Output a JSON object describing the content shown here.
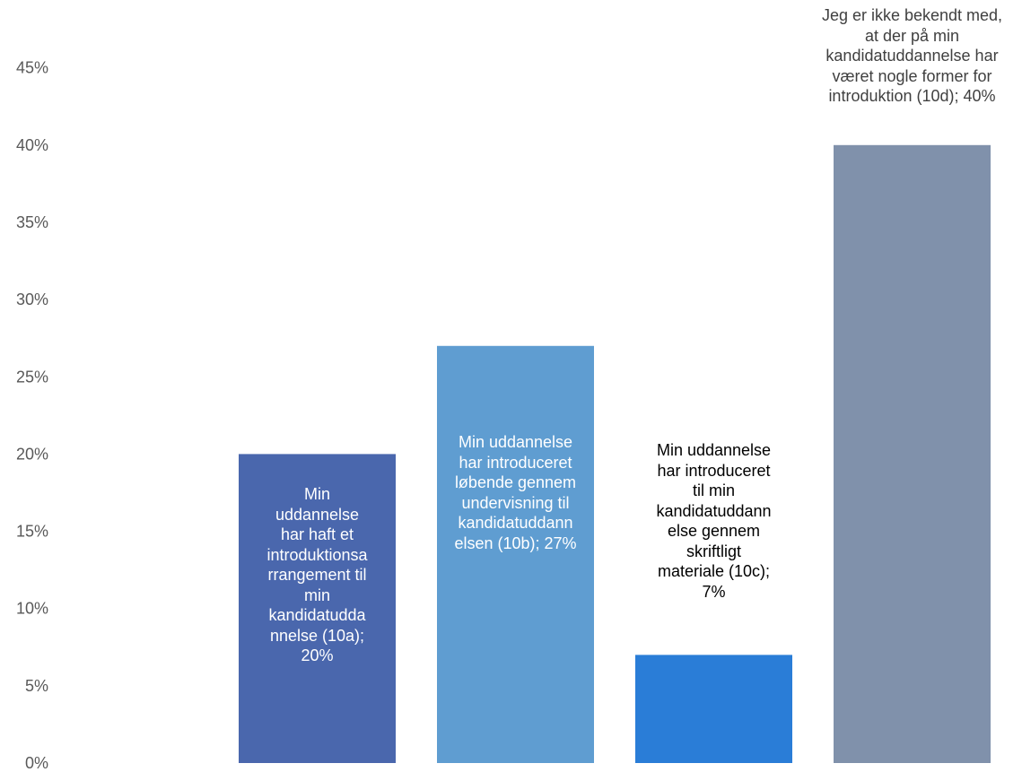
{
  "chart_data": {
    "type": "bar",
    "title": "",
    "xlabel": "",
    "ylabel": "",
    "ylim": [
      0,
      50
    ],
    "yticks": [
      "0%",
      "5%",
      "10%",
      "15%",
      "20%",
      "25%",
      "30%",
      "35%",
      "40%",
      "45%"
    ],
    "grid": false,
    "categories": [
      "10a",
      "10b",
      "10c",
      "10d"
    ],
    "values": [
      20,
      27,
      7,
      40
    ],
    "colors": [
      "#4a67ad",
      "#5f9dd1",
      "#2a7dd7",
      "#8091ab"
    ],
    "data_labels": [
      "Min uddannelse har haft et introduktionsarrangement til min kandidatuddannelse (10a); 20%",
      "Min uddannelse har introduceret løbende gennem undervisning til kandidatuddannelsen (10b); 27%",
      "Min uddannelse har introduceret til min kandidatuddannelse gennem skriftligt materiale (10c); 7%",
      "Jeg er ikke bekendt med, at der på min kandidatuddannelse har været nogle former for introduktion (10d); 40%"
    ],
    "data_label_lines": [
      [
        "Min",
        "uddannelse",
        "har haft et",
        "introduktionsa",
        "rrangement til",
        "min",
        "kandidatudda",
        "nnelse (10a);",
        "20%"
      ],
      [
        "Min uddannelse",
        "har introduceret",
        "løbende gennem",
        "undervisning til",
        "kandidatuddann",
        "elsen (10b); 27%"
      ],
      [
        "Min uddannelse",
        "har introduceret",
        "til min",
        "kandidatuddann",
        "else gennem",
        "skriftligt",
        "materiale (10c);",
        "7%"
      ],
      [
        "Jeg er ikke bekendt med,",
        "at der på min",
        "kandidatuddannelse har",
        "været nogle former for",
        "introduktion (10d); 40%"
      ]
    ],
    "label_colors": [
      "#ffffff",
      "#ffffff",
      "#000000",
      "#404040"
    ]
  }
}
